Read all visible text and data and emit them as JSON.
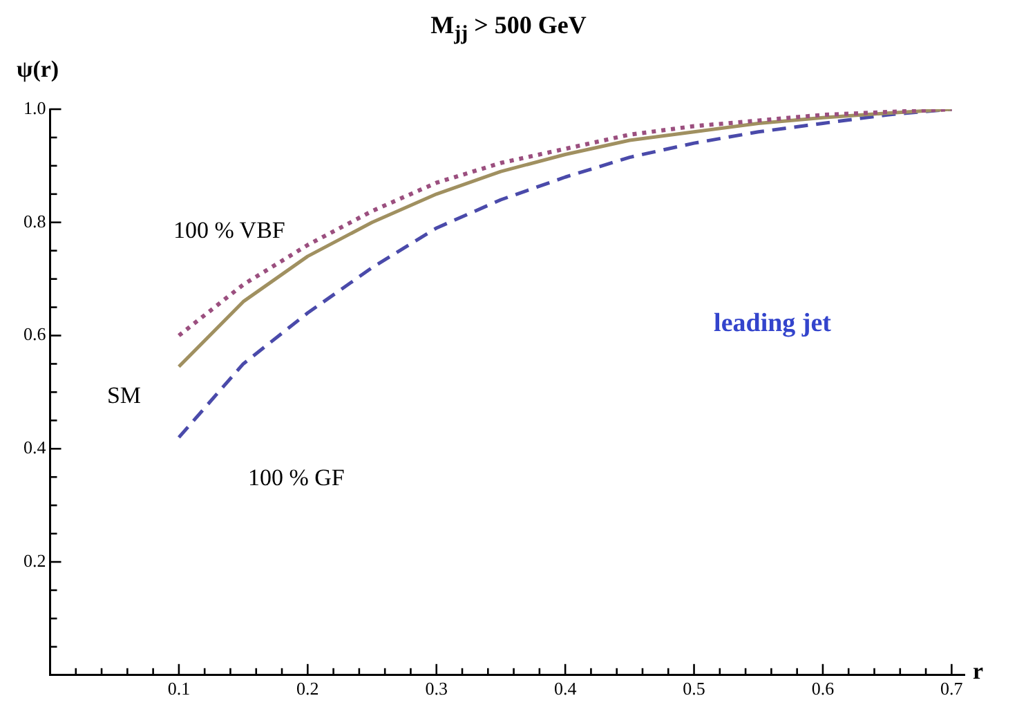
{
  "chart_data": {
    "type": "line",
    "title": "M$_{jj}$ > 500 GeV",
    "xlabel": "r",
    "ylabel": "ψ(r)",
    "x": [
      0.1,
      0.15,
      0.2,
      0.25,
      0.3,
      0.35,
      0.4,
      0.45,
      0.5,
      0.55,
      0.6,
      0.65,
      0.7
    ],
    "series": [
      {
        "name": "100 % VBF",
        "color": "#9b4f7f",
        "line_style": "dotted",
        "values": [
          0.6,
          0.69,
          0.76,
          0.82,
          0.87,
          0.905,
          0.93,
          0.955,
          0.97,
          0.98,
          0.99,
          0.995,
          1.0
        ]
      },
      {
        "name": "SM",
        "color": "#a09060",
        "line_style": "solid",
        "values": [
          0.545,
          0.66,
          0.74,
          0.8,
          0.85,
          0.89,
          0.92,
          0.945,
          0.96,
          0.975,
          0.985,
          0.993,
          1.0
        ]
      },
      {
        "name": "100 % GF",
        "color": "#4a4aaa",
        "line_style": "dashed",
        "values": [
          0.42,
          0.55,
          0.64,
          0.72,
          0.79,
          0.84,
          0.88,
          0.915,
          0.94,
          0.96,
          0.975,
          0.99,
          1.0
        ]
      }
    ],
    "annotations": [
      "leading jet"
    ],
    "xlim": [
      0,
      0.71
    ],
    "ylim": [
      0,
      1.0
    ],
    "xticks": [
      {
        "value": 0.02,
        "label": null
      },
      {
        "value": 0.04,
        "label": null
      },
      {
        "value": 0.06,
        "label": null
      },
      {
        "value": 0.08,
        "label": null
      },
      0.1,
      {
        "value": 0.12,
        "label": null
      },
      {
        "value": 0.14,
        "label": null
      },
      {
        "value": 0.16,
        "label": null
      },
      {
        "value": 0.18,
        "label": null
      },
      0.2,
      {
        "value": 0.22,
        "label": null
      },
      {
        "value": 0.24,
        "label": null
      },
      {
        "value": 0.26,
        "label": null
      },
      {
        "value": 0.28,
        "label": null
      },
      0.3,
      {
        "value": 0.32,
        "label": null
      },
      {
        "value": 0.34,
        "label": null
      },
      {
        "value": 0.36,
        "label": null
      },
      {
        "value": 0.38,
        "label": null
      },
      0.4,
      {
        "value": 0.42,
        "label": null
      },
      {
        "value": 0.44,
        "label": null
      },
      {
        "value": 0.46,
        "label": null
      },
      {
        "value": 0.48,
        "label": null
      },
      0.5,
      {
        "value": 0.52,
        "label": null
      },
      {
        "value": 0.54,
        "label": null
      },
      {
        "value": 0.56,
        "label": null
      },
      {
        "value": 0.58,
        "label": null
      },
      0.6,
      {
        "value": 0.62,
        "label": null
      },
      {
        "value": 0.64,
        "label": null
      },
      {
        "value": 0.66,
        "label": null
      },
      {
        "value": 0.68,
        "label": null
      },
      0.7
    ],
    "yticks": [
      {
        "value": 0.05,
        "label": null
      },
      {
        "value": 0.1,
        "label": null
      },
      {
        "value": 0.15,
        "label": null
      },
      0.2,
      {
        "value": 0.25,
        "label": null
      },
      {
        "value": 0.3,
        "label": null
      },
      {
        "value": 0.35,
        "label": null
      },
      0.4,
      {
        "value": 0.45,
        "label": null
      },
      {
        "value": 0.5,
        "label": null
      },
      {
        "value": 0.55,
        "label": null
      },
      0.6,
      {
        "value": 0.65,
        "label": null
      },
      {
        "value": 0.7,
        "label": null
      },
      {
        "value": 0.75,
        "label": null
      },
      0.8,
      {
        "value": 0.85,
        "label": null
      },
      {
        "value": 0.9,
        "label": null
      },
      {
        "value": 0.95,
        "label": null
      },
      {
        "value": 1.0,
        "label": "1.0"
      }
    ],
    "grid": false,
    "legend": false,
    "marker": "none"
  }
}
